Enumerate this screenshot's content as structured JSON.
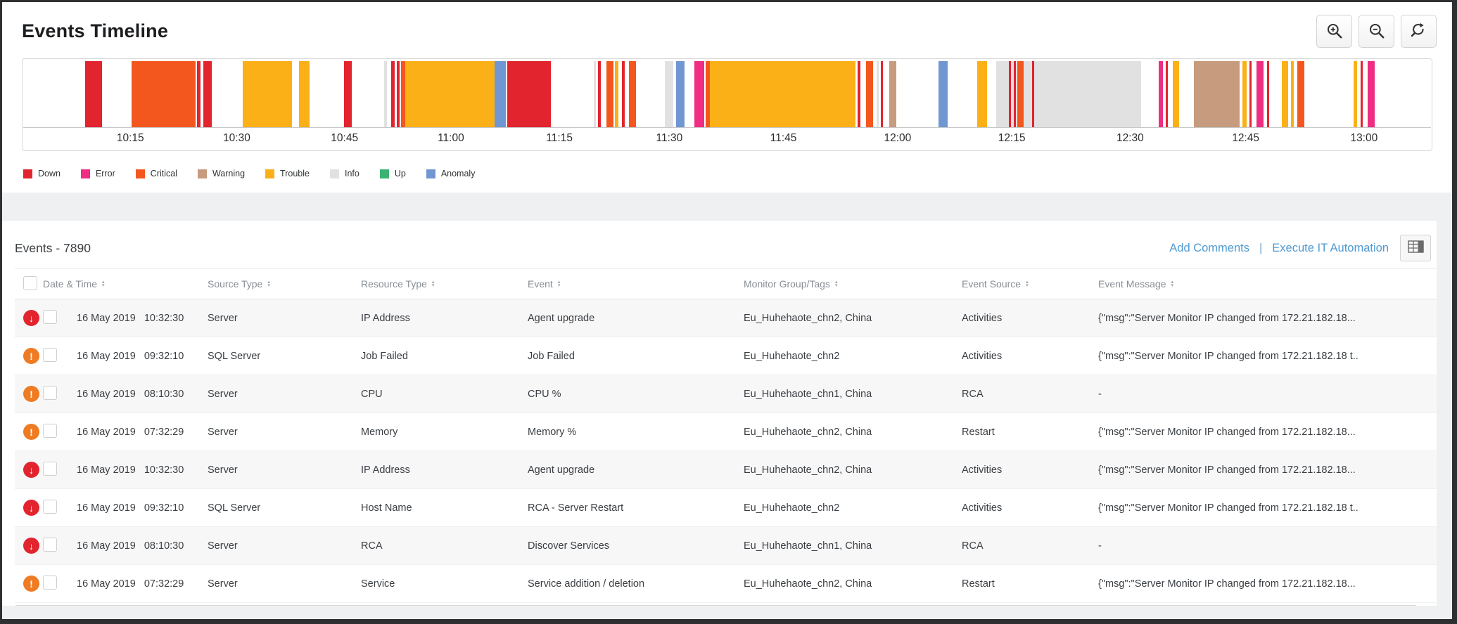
{
  "app": {
    "title": "Events Timeline"
  },
  "toolbar": {
    "buttons": [
      {
        "name": "zoom-in"
      },
      {
        "name": "zoom-out"
      },
      {
        "name": "zoom-reset"
      }
    ]
  },
  "severity_colors": {
    "down": "#e2242f",
    "error": "#ee2d83",
    "critical": "#f4571d",
    "warning": "#c79b7d",
    "trouble": "#fbb017",
    "info": "#e1e1e1",
    "up": "#3bb273",
    "anomaly": "#7197d2"
  },
  "status_icons": {
    "down": {
      "glyph": "↓",
      "color": "#e2242f",
      "icon_name": "down-arrow-icon"
    },
    "trouble": {
      "glyph": "!",
      "color": "#ef7b23",
      "icon_name": "exclamation-icon"
    }
  },
  "timeline": {
    "ticks": [
      {
        "label": "10:15",
        "pos": 7.65
      },
      {
        "label": "10:30",
        "pos": 15.2
      },
      {
        "label": "10:45",
        "pos": 22.85
      },
      {
        "label": "11:00",
        "pos": 30.4
      },
      {
        "label": "11:15",
        "pos": 38.1
      },
      {
        "label": "11:30",
        "pos": 45.9
      },
      {
        "label": "11:45",
        "pos": 54.0
      },
      {
        "label": "12:00",
        "pos": 62.1
      },
      {
        "label": "12:15",
        "pos": 70.2
      },
      {
        "label": "12:30",
        "pos": 78.6
      },
      {
        "label": "12:45",
        "pos": 86.8
      },
      {
        "label": "13:00",
        "pos": 95.2
      }
    ],
    "segments": [
      [
        4.4,
        1.2,
        "down"
      ],
      [
        7.7,
        4.55,
        "critical"
      ],
      [
        12.35,
        0.25,
        "down"
      ],
      [
        12.8,
        0.6,
        "down"
      ],
      [
        15.6,
        3.5,
        "trouble"
      ],
      [
        19.6,
        0.75,
        "trouble"
      ],
      [
        22.8,
        0.55,
        "down"
      ],
      [
        25.65,
        0.2,
        "info"
      ],
      [
        26.15,
        0.25,
        "down"
      ],
      [
        26.55,
        0.2,
        "down"
      ],
      [
        26.85,
        0.3,
        "critical"
      ],
      [
        27.15,
        6.35,
        "trouble"
      ],
      [
        33.5,
        0.8,
        "anomaly"
      ],
      [
        34.4,
        3.1,
        "down"
      ],
      [
        40.55,
        0.15,
        "info"
      ],
      [
        40.85,
        0.2,
        "down"
      ],
      [
        41.45,
        0.5,
        "critical"
      ],
      [
        42.05,
        0.25,
        "trouble"
      ],
      [
        42.55,
        0.2,
        "down"
      ],
      [
        43.05,
        0.5,
        "critical"
      ],
      [
        45.6,
        0.6,
        "info"
      ],
      [
        46.4,
        0.6,
        "anomaly"
      ],
      [
        47.7,
        0.7,
        "error"
      ],
      [
        48.5,
        0.3,
        "critical"
      ],
      [
        48.8,
        10.3,
        "trouble"
      ],
      [
        59.25,
        0.2,
        "down"
      ],
      [
        59.85,
        0.5,
        "critical"
      ],
      [
        60.6,
        0.15,
        "info"
      ],
      [
        60.9,
        0.15,
        "down"
      ],
      [
        61.5,
        0.5,
        "warning"
      ],
      [
        65.0,
        0.65,
        "anomaly"
      ],
      [
        67.75,
        0.7,
        "trouble"
      ],
      [
        69.1,
        10.3,
        "info"
      ],
      [
        70.0,
        0.15,
        "down"
      ],
      [
        70.35,
        0.15,
        "down"
      ],
      [
        70.6,
        0.45,
        "critical"
      ],
      [
        71.65,
        0.15,
        "down"
      ],
      [
        80.65,
        0.3,
        "error"
      ],
      [
        81.15,
        0.15,
        "down"
      ],
      [
        81.65,
        0.45,
        "trouble"
      ],
      [
        83.15,
        3.25,
        "warning"
      ],
      [
        86.6,
        0.3,
        "trouble"
      ],
      [
        87.1,
        0.15,
        "down"
      ],
      [
        87.6,
        0.5,
        "error"
      ],
      [
        88.35,
        0.15,
        "down"
      ],
      [
        89.4,
        0.45,
        "trouble"
      ],
      [
        90.05,
        0.2,
        "trouble"
      ],
      [
        90.5,
        0.5,
        "critical"
      ],
      [
        94.5,
        0.25,
        "trouble"
      ],
      [
        95.0,
        0.15,
        "down"
      ],
      [
        95.5,
        0.5,
        "error"
      ]
    ]
  },
  "legend": {
    "items": [
      {
        "label": "Down",
        "sev": "down"
      },
      {
        "label": "Error",
        "sev": "error"
      },
      {
        "label": "Critical",
        "sev": "critical"
      },
      {
        "label": "Warning",
        "sev": "warning"
      },
      {
        "label": "Trouble",
        "sev": "trouble"
      },
      {
        "label": "Info",
        "sev": "info"
      },
      {
        "label": "Up",
        "sev": "up"
      },
      {
        "label": "Anomaly",
        "sev": "anomaly"
      }
    ]
  },
  "events": {
    "title": "Events - 7890",
    "actions": [
      {
        "label": "Add Comments"
      },
      {
        "label": "Execute IT Automation"
      }
    ],
    "separator": "|"
  },
  "table": {
    "columns": [
      {
        "label": "Date & Time"
      },
      {
        "label": "Source Type"
      },
      {
        "label": "Resource Type"
      },
      {
        "label": "Event"
      },
      {
        "label": "Monitor Group/Tags"
      },
      {
        "label": "Event Source"
      },
      {
        "label": "Event Message"
      }
    ],
    "rows": [
      {
        "status": "down",
        "date": "16 May 2019",
        "time": "10:32:30",
        "source_type": "Server",
        "resource_type": "IP Address",
        "event": "Agent upgrade",
        "monitor_group": "Eu_Huhehaote_chn2, China",
        "event_source": "Activities",
        "event_message": "{\"msg\":\"Server Monitor IP changed from 172.21.182.18..."
      },
      {
        "status": "trouble",
        "date": "16 May 2019",
        "time": "09:32:10",
        "source_type": "SQL Server",
        "resource_type": "Job Failed",
        "event": "Job Failed",
        "monitor_group": "Eu_Huhehaote_chn2",
        "event_source": "Activities",
        "event_message": "{\"msg\":\"Server Monitor IP changed from 172.21.182.18 t.."
      },
      {
        "status": "trouble",
        "date": "16 May 2019",
        "time": "08:10:30",
        "source_type": "Server",
        "resource_type": "CPU",
        "event": "CPU %",
        "monitor_group": "Eu_Huhehaote_chn1, China",
        "event_source": "RCA",
        "event_message": "-"
      },
      {
        "status": "trouble",
        "date": "16 May 2019",
        "time": "07:32:29",
        "source_type": "Server",
        "resource_type": "Memory",
        "event": "Memory %",
        "monitor_group": "Eu_Huhehaote_chn2, China",
        "event_source": "Restart",
        "event_message": "{\"msg\":\"Server Monitor IP changed from 172.21.182.18..."
      },
      {
        "status": "down",
        "date": "16 May 2019",
        "time": "10:32:30",
        "source_type": "Server",
        "resource_type": "IP Address",
        "event": "Agent upgrade",
        "monitor_group": "Eu_Huhehaote_chn2, China",
        "event_source": "Activities",
        "event_message": "{\"msg\":\"Server Monitor IP changed from 172.21.182.18..."
      },
      {
        "status": "down",
        "date": "16 May 2019",
        "time": "09:32:10",
        "source_type": "SQL Server",
        "resource_type": "Host Name",
        "event": "RCA - Server Restart",
        "monitor_group": "Eu_Huhehaote_chn2",
        "event_source": "Activities",
        "event_message": "{\"msg\":\"Server Monitor IP changed from 172.21.182.18 t.."
      },
      {
        "status": "down",
        "date": "16 May 2019",
        "time": "08:10:30",
        "source_type": "Server",
        "resource_type": "RCA",
        "event": "Discover Services",
        "monitor_group": "Eu_Huhehaote_chn1, China",
        "event_source": "RCA",
        "event_message": "-"
      },
      {
        "status": "trouble",
        "date": "16 May 2019",
        "time": "07:32:29",
        "source_type": "Server",
        "resource_type": "Service",
        "event": "Service addition / deletion",
        "monitor_group": "Eu_Huhehaote_chn2, China",
        "event_source": "Restart",
        "event_message": "{\"msg\":\"Server Monitor IP changed from 172.21.182.18..."
      }
    ]
  }
}
